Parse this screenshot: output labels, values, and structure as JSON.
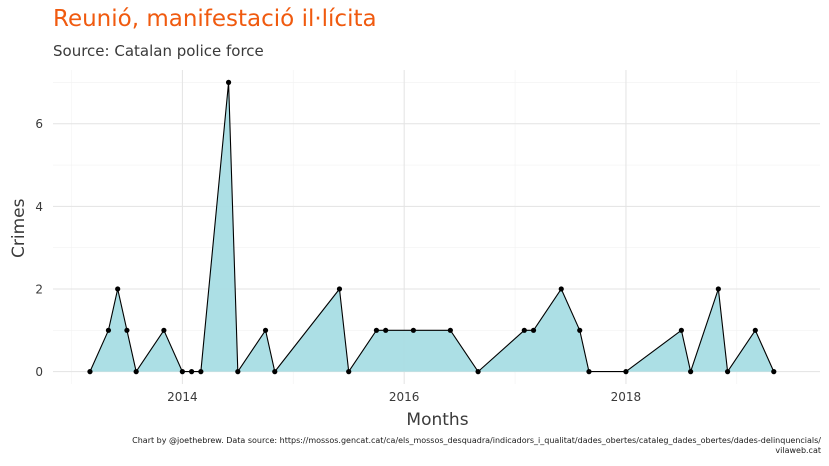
{
  "chart_data": {
    "type": "area",
    "title": "Reunió, manifestació il·lícita",
    "subtitle": "Source: Catalan police force",
    "xlabel": "Months",
    "ylabel": "Crimes",
    "x_ticks": [
      "2014",
      "2016",
      "2018"
    ],
    "y_ticks": [
      "0",
      "2",
      "4",
      "6"
    ],
    "xlim": [
      "2012-11",
      "2019-10"
    ],
    "ylim": [
      -0.3,
      7.3
    ],
    "grid": true,
    "fill_color": "#a8dde4",
    "line_color": "#000000",
    "series": [
      {
        "x": [
          "2013-03",
          "2013-05",
          "2013-06",
          "2013-07",
          "2013-08",
          "2013-11",
          "2014-01",
          "2014-02",
          "2014-03",
          "2014-06",
          "2014-07",
          "2014-10",
          "2014-11",
          "2015-06",
          "2015-07",
          "2015-10",
          "2015-11",
          "2016-02",
          "2016-06",
          "2016-09",
          "2017-02",
          "2017-03",
          "2017-06",
          "2017-08",
          "2017-09",
          "2018-01",
          "2018-07",
          "2018-08",
          "2018-11",
          "2018-12",
          "2019-03",
          "2019-05"
        ],
        "values": [
          0,
          1,
          2,
          1,
          0,
          1,
          0,
          0,
          0,
          7,
          0,
          1,
          0,
          2,
          0,
          1,
          1,
          1,
          1,
          0,
          1,
          1,
          2,
          1,
          0,
          0,
          1,
          0,
          2,
          0,
          1,
          0
        ]
      }
    ]
  },
  "caption_line1": "Chart by @joethebrew. Data source: https://mossos.gencat.cat/ca/els_mossos_desquadra/indicadors_i_qualitat/dades_obertes/cataleg_dades_obertes/dades-delinquencials/",
  "caption_line2": "vilaweb.cat"
}
